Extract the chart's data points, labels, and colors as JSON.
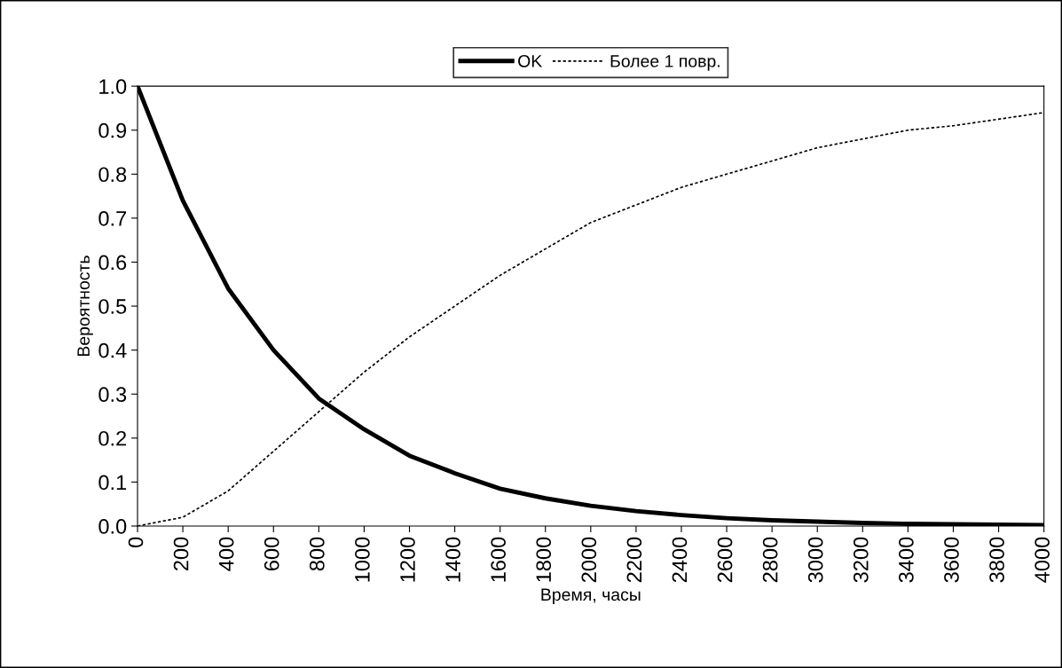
{
  "chart_data": {
    "type": "line",
    "xlabel": "Время, часы",
    "ylabel": "Вероятность",
    "x": [
      0,
      200,
      400,
      600,
      800,
      1000,
      1200,
      1400,
      1600,
      1800,
      2000,
      2200,
      2400,
      2600,
      2800,
      3000,
      3200,
      3400,
      3600,
      3800,
      4000
    ],
    "series": [
      {
        "name": "OK",
        "color": "#000000",
        "line_style": "solid",
        "values": [
          1.0,
          0.74,
          0.54,
          0.4,
          0.29,
          0.22,
          0.16,
          0.12,
          0.085,
          0.063,
          0.046,
          0.034,
          0.025,
          0.018,
          0.013,
          0.01,
          0.007,
          0.005,
          0.004,
          0.003,
          0.002
        ]
      },
      {
        "name": "Более 1 повр.",
        "color": "#000000",
        "line_style": "dotted",
        "values": [
          0.0,
          0.02,
          0.08,
          0.17,
          0.26,
          0.35,
          0.43,
          0.5,
          0.57,
          0.63,
          0.69,
          0.73,
          0.77,
          0.8,
          0.83,
          0.86,
          0.88,
          0.9,
          0.91,
          0.925,
          0.94
        ]
      }
    ],
    "xlim": [
      0,
      4000
    ],
    "xticks": [
      0,
      200,
      400,
      600,
      800,
      1000,
      1200,
      1400,
      1600,
      1800,
      2000,
      2200,
      2400,
      2600,
      2800,
      3000,
      3200,
      3400,
      3600,
      3800,
      4000
    ],
    "ylim": [
      0,
      1.0
    ],
    "yticks": [
      {
        "value": 0,
        "label": "0.0"
      },
      {
        "value": 0.1,
        "label": "0.1"
      },
      {
        "value": 0.2,
        "label": "0.2"
      },
      {
        "value": 0.3,
        "label": "0.3"
      },
      {
        "value": 0.4,
        "label": "0.4"
      },
      {
        "value": 0.5,
        "label": "0.5"
      },
      {
        "value": 0.6,
        "label": "0.6"
      },
      {
        "value": 0.7,
        "label": "0.7"
      },
      {
        "value": 0.8,
        "label": "0.8"
      },
      {
        "value": 0.9,
        "label": "0.9"
      },
      {
        "value": 1.0,
        "label": "1.0"
      }
    ],
    "grid": false,
    "legend": "top",
    "marker": "none"
  }
}
